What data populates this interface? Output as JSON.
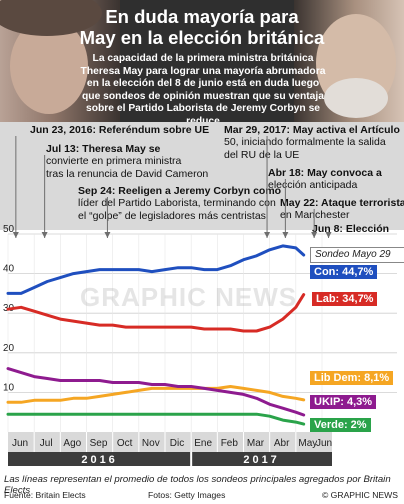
{
  "header": {
    "title_line1": "En duda mayoría para",
    "title_line2": "May en la elección británica",
    "subtitle_lines": [
      "La capacidad de la primera ministra británica",
      "Theresa May para lograr una mayoría abrumadora",
      "en la elección del 8 de junio está en duda luego",
      "que sondeos de opinión muestran que su ventaja",
      "sobre el Partido Laborista de Jeremy Corbyn se reduce"
    ]
  },
  "events": [
    {
      "lines": [
        "Jun 23, 2016: Referéndum sobre UE"
      ],
      "month": "Jun"
    },
    {
      "lines": [
        "Jul 13: Theresa May se",
        "convierte en primera ministra",
        "tras la renuncia de David Cameron"
      ],
      "month": "Jul"
    },
    {
      "lines": [
        "Sep 24: Reeligen a Jeremy Corbyn como",
        "líder del Partido Laborista, terminando con",
        "el “golpe” de legisladores más centristas"
      ],
      "month": "Sep"
    },
    {
      "lines": [
        "Mar 29, 2017: May activa el Artículo",
        "50, iniciando formalmente la salida",
        "del RU de la UE"
      ],
      "month": "Mar"
    },
    {
      "lines": [
        "Abr 18: May convoca a",
        "elección anticipada"
      ],
      "month": "Abr"
    },
    {
      "lines": [
        "May 22: Ataque terrorista",
        "en Manchester"
      ],
      "month": "May"
    },
    {
      "lines": [
        "Jun 8: Elección"
      ],
      "month": "Jun"
    }
  ],
  "sondeo_label": "Sondeo Mayo 29",
  "watermark": "GRAPHIC NEWS",
  "chart_data": {
    "type": "line",
    "ylim": [
      0,
      50
    ],
    "yticks": [
      10,
      20,
      30,
      40,
      50
    ],
    "months": [
      "Jun",
      "Jul",
      "Ago",
      "Sep",
      "Oct",
      "Nov",
      "Dic",
      "Ene",
      "Feb",
      "Mar",
      "Abr",
      "May",
      "Jun"
    ],
    "years": [
      "2016",
      "2017"
    ],
    "x": [
      0,
      0.5,
      1,
      1.5,
      2,
      2.5,
      3,
      3.5,
      4,
      4.5,
      5,
      5.5,
      6,
      6.5,
      7,
      7.5,
      8,
      8.5,
      9,
      9.5,
      10,
      10.5,
      11,
      11.3
    ],
    "series": [
      {
        "name": "Con",
        "label": "Con: 44,7%",
        "color": "#1f4fbf",
        "values": [
          35,
          35,
          36.5,
          38,
          39,
          40,
          40.5,
          41,
          41,
          41,
          41,
          40.5,
          41,
          41.5,
          41.5,
          41,
          41,
          42,
          43.5,
          44.5,
          46,
          47,
          46.5,
          44.7
        ]
      },
      {
        "name": "Lab",
        "label": "Lab: 34,7%",
        "color": "#d72b25",
        "values": [
          31,
          31.5,
          30.5,
          29.5,
          28.5,
          28,
          27.5,
          27,
          27,
          26.5,
          26.5,
          26.5,
          26.5,
          26.5,
          26.5,
          26,
          26,
          26,
          25.5,
          25.5,
          26.5,
          28.5,
          31.5,
          34.7
        ]
      },
      {
        "name": "Lib Dem",
        "label": "Lib Dem: 8,1%",
        "color": "#f5a623",
        "values": [
          7.5,
          7.5,
          8,
          8,
          8,
          8.5,
          8.5,
          9,
          9.5,
          10,
          10.5,
          11,
          11,
          11,
          11,
          11,
          11,
          11.5,
          11,
          10.5,
          10,
          9,
          8.5,
          8.1
        ]
      },
      {
        "name": "UKIP",
        "label": "UKIP: 4,3%",
        "color": "#8e1b8f",
        "values": [
          16,
          15,
          14,
          13.5,
          13,
          13,
          13,
          13,
          12.5,
          12.5,
          12.5,
          12,
          12,
          11.5,
          11.5,
          11,
          10.5,
          10,
          9.5,
          8.5,
          7,
          6,
          5,
          4.3
        ]
      },
      {
        "name": "Verde",
        "label": "Verde: 2%",
        "color": "#2aa34a",
        "values": [
          4.5,
          4.5,
          4.5,
          4.5,
          4.5,
          4.5,
          4.5,
          4.5,
          4.5,
          4.5,
          4.5,
          4.5,
          4.5,
          4.5,
          4.5,
          4.5,
          4.5,
          4.5,
          4.5,
          4.5,
          4,
          3,
          2.5,
          2
        ]
      }
    ]
  },
  "footer": {
    "note": "Las líneas representan el promedio de todos los sondeos principales agregados por Britain Elects",
    "source": "Fuente: Britain Elects",
    "photos": "Fotos: Getty Images",
    "brand": "© GRAPHIC NEWS"
  }
}
